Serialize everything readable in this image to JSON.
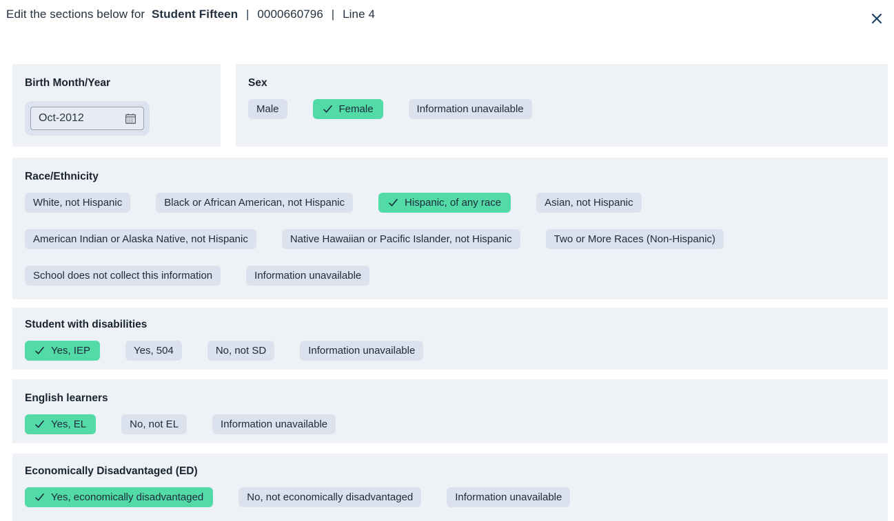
{
  "header": {
    "prefix": "Edit the sections below for",
    "student_name": "Student Fifteen",
    "sep": "|",
    "student_id": "0000660796",
    "line_label": "Line 4",
    "close_icon": "x-icon"
  },
  "colors": {
    "card_bg": "#eef2f7",
    "pill_bg": "#dbe2ee",
    "selected_pill_bg": "#52daa7",
    "text": "#1e2b3a",
    "close_icon": "#1d4064"
  },
  "sections": {
    "birth": {
      "label": "Birth Month/Year",
      "value": "Oct-2012",
      "icon": "calendar-icon"
    },
    "sex": {
      "label": "Sex",
      "rows": [
        3
      ],
      "options": [
        {
          "label": "Male",
          "selected": false
        },
        {
          "label": "Female",
          "selected": true
        },
        {
          "label": "Information unavailable",
          "selected": false
        }
      ]
    },
    "race": {
      "label": "Race/Ethnicity",
      "rows": [
        4,
        3,
        2
      ],
      "options": [
        {
          "label": "White, not Hispanic",
          "selected": false
        },
        {
          "label": "Black or African American, not Hispanic",
          "selected": false
        },
        {
          "label": "Hispanic, of any race",
          "selected": true
        },
        {
          "label": "Asian, not Hispanic",
          "selected": false
        },
        {
          "label": "American Indian or Alaska Native, not Hispanic",
          "selected": false
        },
        {
          "label": "Native Hawaiian or Pacific Islander, not Hispanic",
          "selected": false
        },
        {
          "label": "Two or More Races (Non-Hispanic)",
          "selected": false
        },
        {
          "label": "School does not collect this information",
          "selected": false
        },
        {
          "label": "Information unavailable",
          "selected": false
        }
      ]
    },
    "disabilities": {
      "label": "Student with disabilities",
      "rows": [
        4
      ],
      "options": [
        {
          "label": "Yes, IEP",
          "selected": true
        },
        {
          "label": "Yes, 504",
          "selected": false
        },
        {
          "label": "No, not SD",
          "selected": false
        },
        {
          "label": "Information unavailable",
          "selected": false
        }
      ]
    },
    "english": {
      "label": "English learners",
      "rows": [
        3
      ],
      "options": [
        {
          "label": "Yes, EL",
          "selected": true
        },
        {
          "label": "No, not EL",
          "selected": false
        },
        {
          "label": "Information unavailable",
          "selected": false
        }
      ]
    },
    "economically": {
      "label": "Economically Disadvantaged (ED)",
      "rows": [
        3
      ],
      "options": [
        {
          "label": "Yes, economically disadvantaged",
          "selected": true
        },
        {
          "label": "No, not economically disadvantaged",
          "selected": false
        },
        {
          "label": "Information unavailable",
          "selected": false
        }
      ]
    }
  }
}
